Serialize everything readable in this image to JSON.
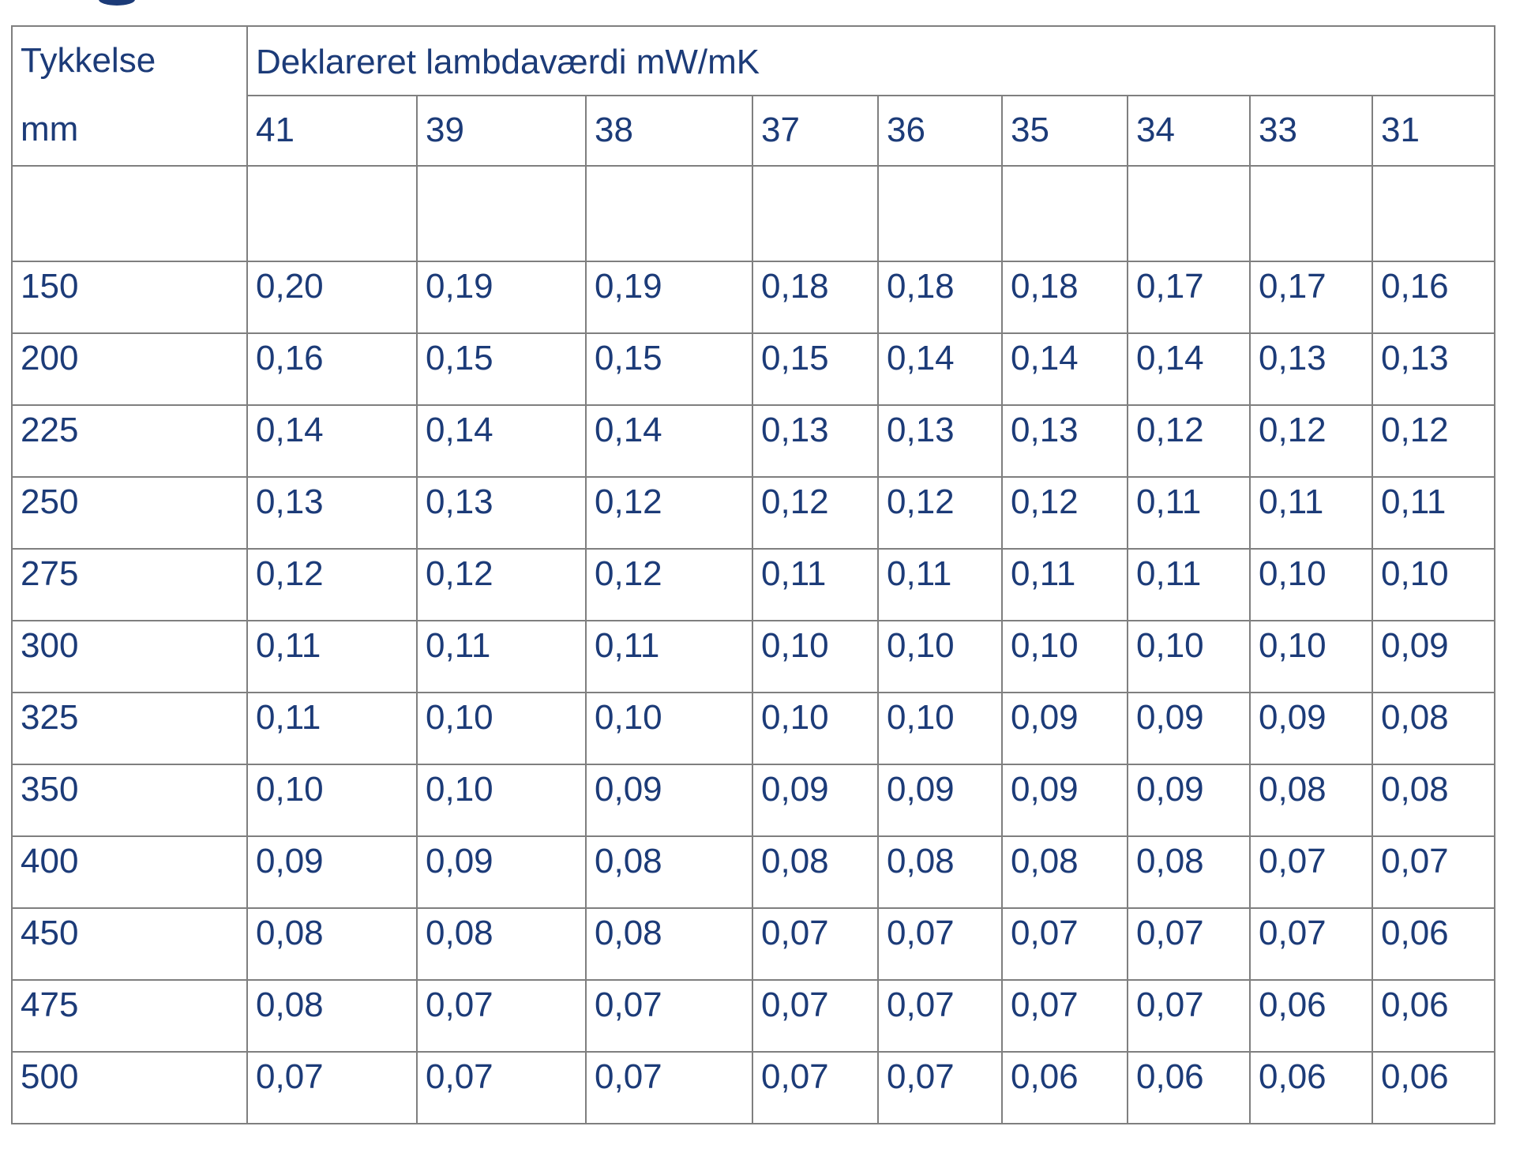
{
  "page": {
    "background": "#ffffff",
    "text_color": "#1c3b78",
    "border_color": "#7f7f7f",
    "top_fragment_color": "#1c3b78"
  },
  "table": {
    "corner_header_line1": "Tykkelse",
    "corner_header_line2": "mm",
    "group_header": "Deklareret lambdaværdi mW/mK",
    "column_headers": [
      "41",
      "39",
      "38",
      "37",
      "36",
      "35",
      "34",
      "33",
      "31"
    ],
    "rows": [
      {
        "thickness": "150",
        "values": [
          "0,20",
          "0,19",
          "0,19",
          "0,18",
          "0,18",
          "0,18",
          "0,17",
          "0,17",
          "0,16"
        ]
      },
      {
        "thickness": "200",
        "values": [
          "0,16",
          "0,15",
          "0,15",
          "0,15",
          "0,14",
          "0,14",
          "0,14",
          "0,13",
          "0,13"
        ]
      },
      {
        "thickness": "225",
        "values": [
          "0,14",
          "0,14",
          "0,14",
          "0,13",
          "0,13",
          "0,13",
          "0,12",
          "0,12",
          "0,12"
        ]
      },
      {
        "thickness": "250",
        "values": [
          "0,13",
          "0,13",
          "0,12",
          "0,12",
          "0,12",
          "0,12",
          "0,11",
          "0,11",
          "0,11"
        ]
      },
      {
        "thickness": "275",
        "values": [
          "0,12",
          "0,12",
          "0,12",
          "0,11",
          "0,11",
          "0,11",
          "0,11",
          "0,10",
          "0,10"
        ]
      },
      {
        "thickness": "300",
        "values": [
          "0,11",
          "0,11",
          "0,11",
          "0,10",
          "0,10",
          "0,10",
          "0,10",
          "0,10",
          "0,09"
        ]
      },
      {
        "thickness": "325",
        "values": [
          "0,11",
          "0,10",
          "0,10",
          "0,10",
          "0,10",
          "0,09",
          "0,09",
          "0,09",
          "0,08"
        ]
      },
      {
        "thickness": "350",
        "values": [
          "0,10",
          "0,10",
          "0,09",
          "0,09",
          "0,09",
          "0,09",
          "0,09",
          "0,08",
          "0,08"
        ]
      },
      {
        "thickness": "400",
        "values": [
          "0,09",
          "0,09",
          "0,08",
          "0,08",
          "0,08",
          "0,08",
          "0,08",
          "0,07",
          "0,07"
        ]
      },
      {
        "thickness": "450",
        "values": [
          "0,08",
          "0,08",
          "0,08",
          "0,07",
          "0,07",
          "0,07",
          "0,07",
          "0,07",
          "0,06"
        ]
      },
      {
        "thickness": "475",
        "values": [
          "0,08",
          "0,07",
          "0,07",
          "0,07",
          "0,07",
          "0,07",
          "0,07",
          "0,06",
          "0,06"
        ]
      },
      {
        "thickness": "500",
        "values": [
          "0,07",
          "0,07",
          "0,07",
          "0,07",
          "0,07",
          "0,06",
          "0,06",
          "0,06",
          "0,06"
        ]
      }
    ]
  }
}
